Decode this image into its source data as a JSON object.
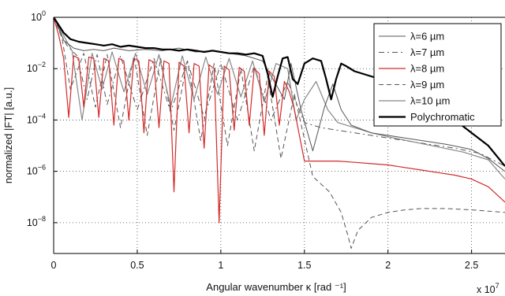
{
  "chart_data": {
    "type": "line",
    "xlabel": "Angular wavenumber    κ [rad ⁻¹]",
    "ylabel": "normalized |FT| [a.u.]",
    "x_multiplier": "x 10",
    "x_multiplier_exp": "7",
    "xlim": [
      0,
      2.7
    ],
    "ylim_log10": [
      -9.2,
      0
    ],
    "y_scale": "log",
    "grid": true,
    "legend_position": "top-right",
    "x_ticks": [
      {
        "value": 0,
        "label": "0"
      },
      {
        "value": 0.5,
        "label": "0.5"
      },
      {
        "value": 1,
        "label": "1"
      },
      {
        "value": 1.5,
        "label": "1.5"
      },
      {
        "value": 2,
        "label": "2"
      },
      {
        "value": 2.5,
        "label": "2.5"
      }
    ],
    "y_ticks": [
      {
        "exp": 0,
        "base": "10",
        "sup": "0"
      },
      {
        "exp": -2,
        "base": "10",
        "sup": "−2"
      },
      {
        "exp": -4,
        "base": "10",
        "sup": "−4"
      },
      {
        "exp": -6,
        "base": "10",
        "sup": "−6"
      },
      {
        "exp": -8,
        "base": "10",
        "sup": "−8"
      }
    ],
    "series": [
      {
        "name": "λ=6 µm",
        "color": "#555555",
        "dash": "",
        "width": 1,
        "x": [
          0,
          0.03,
          0.06,
          0.12,
          0.18,
          0.24,
          0.3,
          0.36,
          0.45,
          0.55,
          0.65,
          0.75,
          0.85,
          0.95,
          1.05,
          1.15,
          1.25,
          1.32,
          1.38,
          1.42,
          1.48,
          1.55,
          1.62,
          1.67,
          1.72,
          1.78,
          1.9,
          2.05,
          2.2,
          2.35,
          2.5,
          2.6,
          2.7
        ],
        "y": [
          0,
          -0.4,
          -0.9,
          -1.2,
          -1.3,
          -1.25,
          -1.3,
          -1.2,
          -1.3,
          -1.25,
          -1.3,
          -1.2,
          -1.35,
          -1.3,
          -1.4,
          -1.5,
          -1.7,
          -2.5,
          -3.2,
          -1.8,
          -3.6,
          -5.2,
          -3.5,
          -2.6,
          -3.6,
          -4.2,
          -4.5,
          -4.65,
          -4.8,
          -4.95,
          -5.15,
          -5.5,
          -6.0
        ]
      },
      {
        "name": "λ=7 µm",
        "color": "#555555",
        "dash": "7,4,2,4",
        "width": 1,
        "x": [
          0,
          0.04,
          0.08,
          0.14,
          0.2,
          0.26,
          0.32,
          0.4,
          0.5,
          0.6,
          0.7,
          0.8,
          0.9,
          1.0,
          1.1,
          1.2,
          1.3,
          1.4,
          1.5,
          1.6,
          1.7,
          1.8,
          1.9,
          2.0,
          2.2,
          2.4,
          2.55,
          2.7
        ],
        "y": [
          0,
          -0.6,
          -1.1,
          -1.5,
          -3.2,
          -1.45,
          -3.4,
          -1.5,
          -3.6,
          -1.6,
          -3.7,
          -1.7,
          -3.9,
          -1.8,
          -4.0,
          -1.9,
          -4.0,
          -2.5,
          -4.1,
          -4.3,
          -4.4,
          -4.5,
          -4.6,
          -4.7,
          -4.9,
          -5.1,
          -5.3,
          -5.8
        ]
      },
      {
        "name": "λ=8 µm",
        "color": "#d42a2a",
        "dash": "",
        "width": 1.2,
        "x": [
          0,
          0.03,
          0.06,
          0.09,
          0.12,
          0.15,
          0.18,
          0.21,
          0.24,
          0.27,
          0.3,
          0.33,
          0.36,
          0.39,
          0.42,
          0.45,
          0.48,
          0.51,
          0.54,
          0.57,
          0.6,
          0.63,
          0.66,
          0.69,
          0.72,
          0.75,
          0.78,
          0.81,
          0.84,
          0.87,
          0.9,
          0.93,
          0.96,
          0.99,
          1.02,
          1.05,
          1.08,
          1.11,
          1.14,
          1.17,
          1.2,
          1.23,
          1.26,
          1.29,
          1.32,
          1.35,
          1.38,
          1.41,
          1.44,
          1.5,
          1.6,
          1.7,
          1.8,
          1.9,
          2.0,
          2.1,
          2.2,
          2.3,
          2.4,
          2.5,
          2.6,
          2.7
        ],
        "y": [
          0,
          -0.7,
          -1.6,
          -3.9,
          -1.5,
          -1.6,
          -3.5,
          -1.55,
          -1.6,
          -3.9,
          -1.6,
          -1.7,
          -4.2,
          -1.6,
          -1.7,
          -4.0,
          -1.6,
          -1.7,
          -4.5,
          -1.65,
          -1.75,
          -4.3,
          -1.7,
          -1.8,
          -6.8,
          -1.75,
          -1.9,
          -4.5,
          -1.8,
          -1.9,
          -5.1,
          -1.85,
          -2.0,
          -8.0,
          -1.9,
          -2.05,
          -4.4,
          -1.95,
          -2.1,
          -4.2,
          -2.0,
          -2.2,
          -4.6,
          -2.1,
          -2.3,
          -4.2,
          -2.5,
          -2.9,
          -3.6,
          -5.6,
          -5.6,
          -5.6,
          -5.65,
          -5.7,
          -5.75,
          -5.85,
          -5.95,
          -6.05,
          -6.15,
          -6.3,
          -6.6,
          -7.2
        ]
      },
      {
        "name": "λ=9 µm",
        "color": "#555555",
        "dash": "6,4",
        "width": 1,
        "x": [
          0,
          0.05,
          0.1,
          0.18,
          0.25,
          0.32,
          0.4,
          0.48,
          0.56,
          0.64,
          0.72,
          0.8,
          0.88,
          0.96,
          1.04,
          1.12,
          1.2,
          1.28,
          1.36,
          1.44,
          1.55,
          1.65,
          1.72,
          1.76,
          1.78,
          1.82,
          1.9,
          2.0,
          2.1,
          2.2,
          2.35,
          2.5,
          2.6,
          2.7
        ],
        "y": [
          0,
          -0.8,
          -2.8,
          -1.4,
          -3.5,
          -1.45,
          -4.3,
          -1.5,
          -4.6,
          -1.6,
          -4.4,
          -1.7,
          -4.8,
          -1.8,
          -5.0,
          -2.0,
          -5.2,
          -2.3,
          -5.5,
          -3.0,
          -6.2,
          -6.8,
          -7.6,
          -8.5,
          -9.0,
          -8.3,
          -7.8,
          -7.6,
          -7.5,
          -7.45,
          -7.45,
          -7.5,
          -7.55,
          -7.6
        ]
      },
      {
        "name": "λ=10 µm",
        "color": "#888888",
        "dash": "",
        "width": 1.2,
        "x": [
          0,
          0.05,
          0.11,
          0.17,
          0.23,
          0.29,
          0.35,
          0.42,
          0.49,
          0.56,
          0.63,
          0.7,
          0.77,
          0.84,
          0.91,
          0.98,
          1.05,
          1.12,
          1.19,
          1.26,
          1.33,
          1.4,
          1.45,
          1.5,
          1.57,
          1.64,
          1.7,
          1.8,
          1.9,
          2.0,
          2.15,
          2.3,
          2.45,
          2.6,
          2.7
        ],
        "y": [
          0,
          -0.6,
          -1.3,
          -4.0,
          -1.4,
          -2.8,
          -1.35,
          -2.9,
          -1.4,
          -3.0,
          -1.45,
          -3.5,
          -1.5,
          -3.2,
          -1.55,
          -3.0,
          -1.6,
          -3.1,
          -1.7,
          -3.3,
          -1.8,
          -2.0,
          -4.0,
          -3.2,
          -2.5,
          -3.6,
          -4.1,
          -4.3,
          -4.5,
          -4.65,
          -4.85,
          -5.05,
          -5.25,
          -5.55,
          -6.3
        ]
      },
      {
        "name": "Polychromatic",
        "color": "#000000",
        "dash": "",
        "width": 2.2,
        "x": [
          0,
          0.03,
          0.06,
          0.1,
          0.15,
          0.2,
          0.25,
          0.3,
          0.35,
          0.4,
          0.45,
          0.5,
          0.55,
          0.6,
          0.65,
          0.7,
          0.75,
          0.8,
          0.85,
          0.9,
          0.95,
          1.0,
          1.05,
          1.1,
          1.15,
          1.2,
          1.25,
          1.28,
          1.31,
          1.34,
          1.37,
          1.4,
          1.43,
          1.46,
          1.5,
          1.55,
          1.6,
          1.63,
          1.66,
          1.69,
          1.72,
          1.75,
          1.8,
          1.9,
          2.0,
          2.1,
          2.2,
          2.3,
          2.4,
          2.5,
          2.6,
          2.7
        ],
        "y": [
          0,
          -0.3,
          -0.6,
          -0.85,
          -0.95,
          -1.0,
          -1.05,
          -1.1,
          -1.05,
          -1.15,
          -1.1,
          -1.15,
          -1.2,
          -1.2,
          -1.25,
          -1.25,
          -1.3,
          -1.25,
          -1.3,
          -1.35,
          -1.3,
          -1.35,
          -1.4,
          -1.4,
          -1.45,
          -1.4,
          -1.5,
          -2.2,
          -3.1,
          -2.3,
          -1.6,
          -1.55,
          -2.4,
          -2.6,
          -1.8,
          -1.6,
          -1.7,
          -2.4,
          -3.2,
          -2.4,
          -1.8,
          -1.9,
          -2.1,
          -2.3,
          -2.5,
          -2.8,
          -3.2,
          -3.6,
          -4.0,
          -4.5,
          -5.0,
          -5.8
        ]
      }
    ]
  }
}
